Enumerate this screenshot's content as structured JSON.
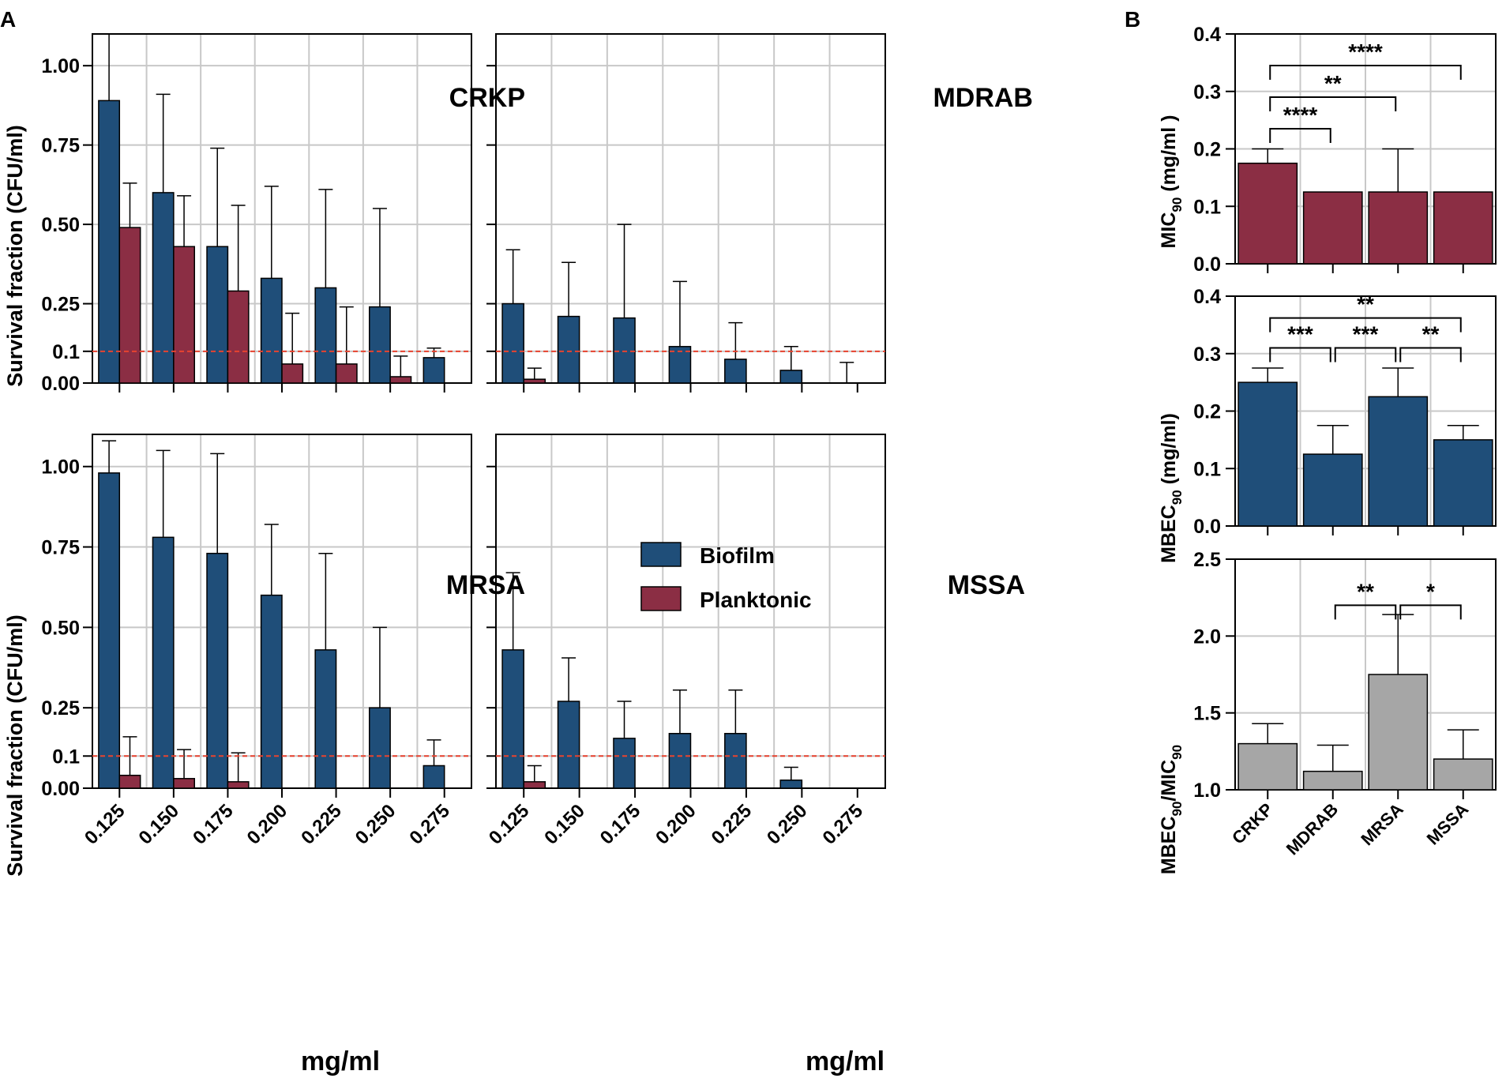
{
  "panel_labels": {
    "a": "A",
    "b": "B"
  },
  "legend": {
    "biofilm": "Biofilm",
    "planktonic": "Planktonic"
  },
  "colors": {
    "biofilm": "#1f4e79",
    "planktonic": "#8b2e44",
    "gray": "#a6a6a6",
    "threshold": "#e8432f",
    "grid": "#c8c8c8"
  },
  "chart_data": [
    {
      "id": "crkp",
      "type": "bar",
      "title": "CRKP",
      "ylabel": "Survival fraction (CFU/ml)",
      "xlabel": "",
      "categories": [
        "0.125",
        "0.150",
        "0.175",
        "0.200",
        "0.225",
        "0.250",
        "0.275"
      ],
      "ylim": [
        0,
        1.1
      ],
      "yticks": [
        "1.00",
        "0.75",
        "0.50",
        "0.25",
        "0.1",
        "0.00"
      ],
      "threshold": 0.1,
      "show_yticklabels": true,
      "show_xticklabels": false,
      "series": [
        {
          "name": "Biofilm",
          "values": [
            0.89,
            0.6,
            0.43,
            0.33,
            0.3,
            0.24,
            0.08
          ],
          "errors": [
            0.22,
            0.31,
            0.31,
            0.29,
            0.31,
            0.31,
            0.03
          ]
        },
        {
          "name": "Planktonic",
          "values": [
            0.49,
            0.43,
            0.29,
            0.06,
            0.06,
            0.02,
            0.0
          ],
          "errors": [
            0.14,
            0.16,
            0.27,
            0.16,
            0.18,
            0.065,
            0.0
          ]
        }
      ]
    },
    {
      "id": "mdrab",
      "type": "bar",
      "title": "MDRAB",
      "ylabel": "",
      "xlabel": "",
      "categories": [
        "0.125",
        "0.150",
        "0.175",
        "0.200",
        "0.225",
        "0.250",
        "0.275"
      ],
      "ylim": [
        0,
        1.1
      ],
      "yticks": [
        "1.00",
        "0.75",
        "0.50",
        "0.25",
        "0.1",
        "0.00"
      ],
      "threshold": 0.1,
      "show_yticklabels": false,
      "show_xticklabels": false,
      "series": [
        {
          "name": "Biofilm",
          "values": [
            0.25,
            0.21,
            0.205,
            0.115,
            0.075,
            0.04,
            0.0
          ],
          "errors": [
            0.17,
            0.17,
            0.295,
            0.205,
            0.115,
            0.075,
            0.065
          ]
        },
        {
          "name": "Planktonic",
          "values": [
            0.012,
            0,
            0,
            0,
            0,
            0,
            0
          ],
          "errors": [
            0.035,
            0,
            0,
            0,
            0,
            0,
            0
          ]
        }
      ]
    },
    {
      "id": "mrsa",
      "type": "bar",
      "title": "MRSA",
      "ylabel": "Survival fraction (CFU/ml)",
      "xlabel": "mg/ml",
      "categories": [
        "0.125",
        "0.150",
        "0.175",
        "0.200",
        "0.225",
        "0.250",
        "0.275"
      ],
      "ylim": [
        0,
        1.1
      ],
      "yticks": [
        "1.00",
        "0.75",
        "0.50",
        "0.25",
        "0.1",
        "0.00"
      ],
      "threshold": 0.1,
      "show_yticklabels": true,
      "show_xticklabels": true,
      "series": [
        {
          "name": "Biofilm",
          "values": [
            0.98,
            0.78,
            0.73,
            0.6,
            0.43,
            0.25,
            0.07
          ],
          "errors": [
            0.1,
            0.27,
            0.31,
            0.22,
            0.3,
            0.25,
            0.08
          ]
        },
        {
          "name": "Planktonic",
          "values": [
            0.04,
            0.03,
            0.02,
            0,
            0,
            0,
            0
          ],
          "errors": [
            0.12,
            0.09,
            0.09,
            0,
            0,
            0,
            0
          ]
        }
      ]
    },
    {
      "id": "mssa",
      "type": "bar",
      "title": "MSSA",
      "ylabel": "",
      "xlabel": "mg/ml",
      "categories": [
        "0.125",
        "0.150",
        "0.175",
        "0.200",
        "0.225",
        "0.250",
        "0.275"
      ],
      "ylim": [
        0,
        1.1
      ],
      "yticks": [
        "1.00",
        "0.75",
        "0.50",
        "0.25",
        "0.1",
        "0.00"
      ],
      "threshold": 0.1,
      "show_yticklabels": false,
      "show_xticklabels": true,
      "series": [
        {
          "name": "Biofilm",
          "values": [
            0.43,
            0.27,
            0.155,
            0.17,
            0.17,
            0.025,
            0.0
          ],
          "errors": [
            0.24,
            0.135,
            0.115,
            0.135,
            0.135,
            0.04,
            0.0
          ]
        },
        {
          "name": "Planktonic",
          "values": [
            0.02,
            0,
            0,
            0,
            0,
            0,
            0
          ],
          "errors": [
            0.05,
            0,
            0,
            0,
            0,
            0,
            0
          ]
        }
      ]
    },
    {
      "id": "mic",
      "type": "bar",
      "title": "",
      "ylabel_main": "MIC",
      "ylabel_sub": "90",
      "ylabel_tail": " (mg/ml )",
      "categories": [
        "CRKP",
        "MDRAB",
        "MRSA",
        "MSSA"
      ],
      "show_xticklabels": false,
      "ylim": [
        0,
        0.4
      ],
      "yticks": [
        "0.4",
        "0.3",
        "0.2",
        "0.1",
        "0.0"
      ],
      "series": [
        {
          "name": "MIC90",
          "values": [
            0.175,
            0.125,
            0.125,
            0.125
          ],
          "errors": [
            0.025,
            0,
            0.075,
            0
          ]
        }
      ],
      "annotations": [
        {
          "from": "CRKP",
          "to": "MSSA",
          "y": 0.345,
          "text": "****"
        },
        {
          "from": "CRKP",
          "to": "MRSA",
          "y": 0.29,
          "text": "**"
        },
        {
          "from": "CRKP",
          "to": "MDRAB",
          "y": 0.235,
          "text": "****"
        }
      ]
    },
    {
      "id": "mbec",
      "type": "bar",
      "title": "",
      "ylabel_main": "MBEC",
      "ylabel_sub": "90",
      "ylabel_tail": " (mg/ml)",
      "categories": [
        "CRKP",
        "MDRAB",
        "MRSA",
        "MSSA"
      ],
      "show_xticklabels": false,
      "ylim": [
        0,
        0.4
      ],
      "yticks": [
        "0.4",
        "0.3",
        "0.2",
        "0.1",
        "0.0"
      ],
      "series": [
        {
          "name": "MBEC90",
          "values": [
            0.25,
            0.125,
            0.225,
            0.15
          ],
          "errors": [
            0.025,
            0.05,
            0.05,
            0.025
          ]
        }
      ],
      "annotations": [
        {
          "from": "CRKP",
          "to": "MSSA",
          "y": 0.362,
          "text": "**"
        },
        {
          "from": "CRKP",
          "to": "MDRAB",
          "y": 0.31,
          "text": "***"
        },
        {
          "from": "MDRAB",
          "to": "MRSA",
          "y": 0.31,
          "text": "***"
        },
        {
          "from": "MRSA",
          "to": "MSSA",
          "y": 0.31,
          "text": "**"
        }
      ]
    },
    {
      "id": "ratio",
      "type": "bar",
      "title": "",
      "ylabel_main": "MBEC",
      "ylabel_sub": "90",
      "ylabel_mid": "/MIC",
      "ylabel_sub2": "90",
      "categories": [
        "CRKP",
        "MDRAB",
        "MRSA",
        "MSSA"
      ],
      "show_xticklabels": true,
      "ylim": [
        1.0,
        2.5
      ],
      "yticks": [
        "2.5",
        "2.0",
        "1.5",
        "1.0"
      ],
      "series": [
        {
          "name": "MBEC90/MIC90",
          "values": [
            1.3,
            1.12,
            1.75,
            1.2
          ],
          "errors": [
            0.13,
            0.17,
            0.39,
            0.19
          ]
        }
      ],
      "annotations": [
        {
          "from": "MDRAB",
          "to": "MRSA",
          "y": 2.2,
          "text": "**"
        },
        {
          "from": "MRSA",
          "to": "MSSA",
          "y": 2.2,
          "text": "*"
        }
      ]
    }
  ]
}
